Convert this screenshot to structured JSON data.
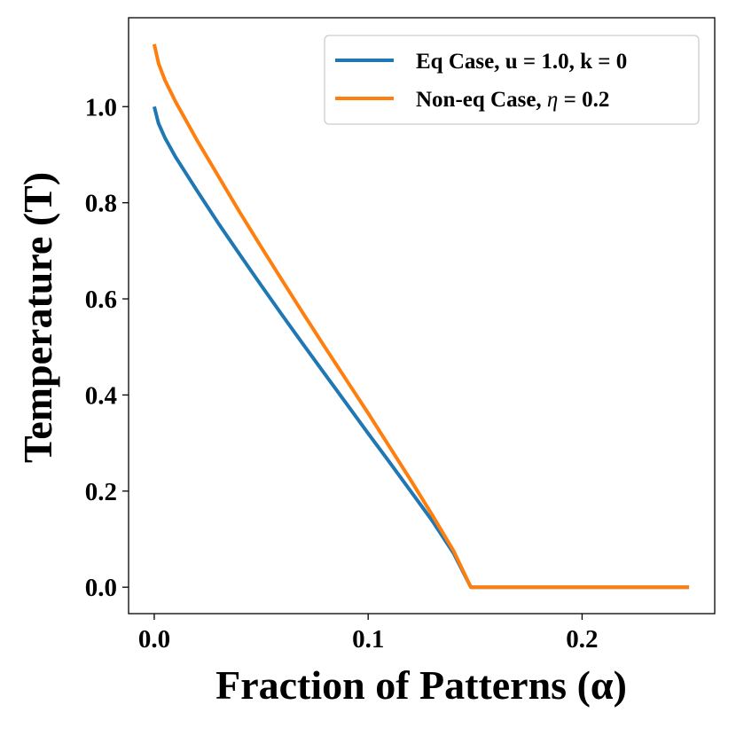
{
  "chart_data": {
    "type": "line",
    "xlabel": "Fraction of Patterns (α)",
    "ylabel": "Temperature (T)",
    "xlim": [
      -0.012,
      0.262
    ],
    "ylim": [
      -0.055,
      1.185
    ],
    "xticks": [
      0.0,
      0.1,
      0.2
    ],
    "xtick_labels": [
      "0.0",
      "0.1",
      "0.2"
    ],
    "yticks": [
      0.0,
      0.2,
      0.4,
      0.6,
      0.8,
      1.0
    ],
    "ytick_labels": [
      "0.0",
      "0.2",
      "0.4",
      "0.6",
      "0.8",
      "1.0"
    ],
    "grid": false,
    "legend_position": "top-right",
    "series": [
      {
        "name": "Eq Case, u = 1.0, k = 0",
        "color": "#1f77b4",
        "x": [
          0.0,
          0.002,
          0.005,
          0.01,
          0.02,
          0.03,
          0.04,
          0.05,
          0.06,
          0.07,
          0.08,
          0.09,
          0.1,
          0.11,
          0.12,
          0.13,
          0.14,
          0.148,
          0.16,
          0.18,
          0.2,
          0.22,
          0.25
        ],
        "y": [
          1.0,
          0.965,
          0.935,
          0.895,
          0.825,
          0.757,
          0.692,
          0.628,
          0.565,
          0.503,
          0.442,
          0.381,
          0.32,
          0.26,
          0.199,
          0.138,
          0.07,
          0.0,
          0.0,
          0.0,
          0.0,
          0.0,
          0.0
        ]
      },
      {
        "name": "Non-eq Case, η = 0.2",
        "legend_prefix": "Non-eq Case, ",
        "legend_symbol": "η",
        "legend_suffix": " = 0.2",
        "color": "#ff7f0e",
        "x": [
          0.0,
          0.002,
          0.005,
          0.01,
          0.02,
          0.03,
          0.04,
          0.05,
          0.06,
          0.07,
          0.08,
          0.09,
          0.1,
          0.11,
          0.12,
          0.13,
          0.14,
          0.148,
          0.16,
          0.18,
          0.2,
          0.22,
          0.25
        ],
        "y": [
          1.13,
          1.09,
          1.055,
          1.01,
          0.93,
          0.855,
          0.78,
          0.708,
          0.637,
          0.567,
          0.498,
          0.43,
          0.362,
          0.292,
          0.222,
          0.15,
          0.075,
          0.0,
          0.0,
          0.0,
          0.0,
          0.0,
          0.0
        ]
      }
    ]
  }
}
